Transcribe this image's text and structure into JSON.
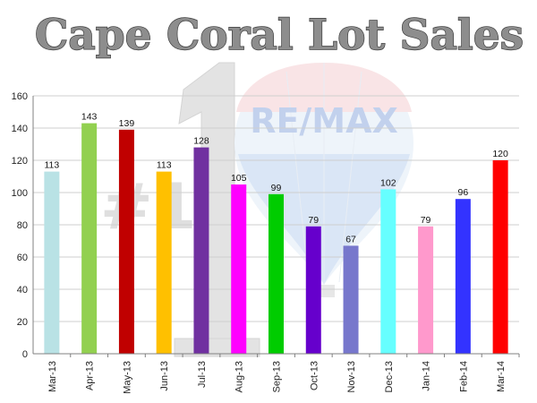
{
  "chart_data": {
    "type": "bar",
    "title": "Cape Coral Lot Sales",
    "xlabel": "",
    "ylabel": "",
    "categories": [
      "Mar-13",
      "Apr-13",
      "May-13",
      "Jun-13",
      "Jul-13",
      "Aug-13",
      "Sep-13",
      "Oct-13",
      "Nov-13",
      "Dec-13",
      "Jan-14",
      "Feb-14",
      "Mar-14"
    ],
    "values": [
      113,
      143,
      139,
      113,
      128,
      105,
      99,
      79,
      67,
      102,
      79,
      96,
      120
    ],
    "bar_colors": [
      "#b9e2e5",
      "#92d050",
      "#c00000",
      "#ffc000",
      "#7030a0",
      "#ff00ff",
      "#00cc00",
      "#6600cc",
      "#7777cc",
      "#66ffff",
      "#ff99cc",
      "#3333ff",
      "#ff0000"
    ],
    "ylim": [
      0,
      160
    ],
    "yticks": [
      0,
      20,
      40,
      60,
      80,
      100,
      120,
      140,
      160
    ],
    "grid": true,
    "data_labels": true,
    "legend": "none"
  },
  "watermark": {
    "brand": "RE/MAX",
    "rank": "#1",
    "balloon_colors": {
      "top": "#e0515a",
      "middle": "#ffffff",
      "bottom": "#2e6fbf"
    }
  }
}
